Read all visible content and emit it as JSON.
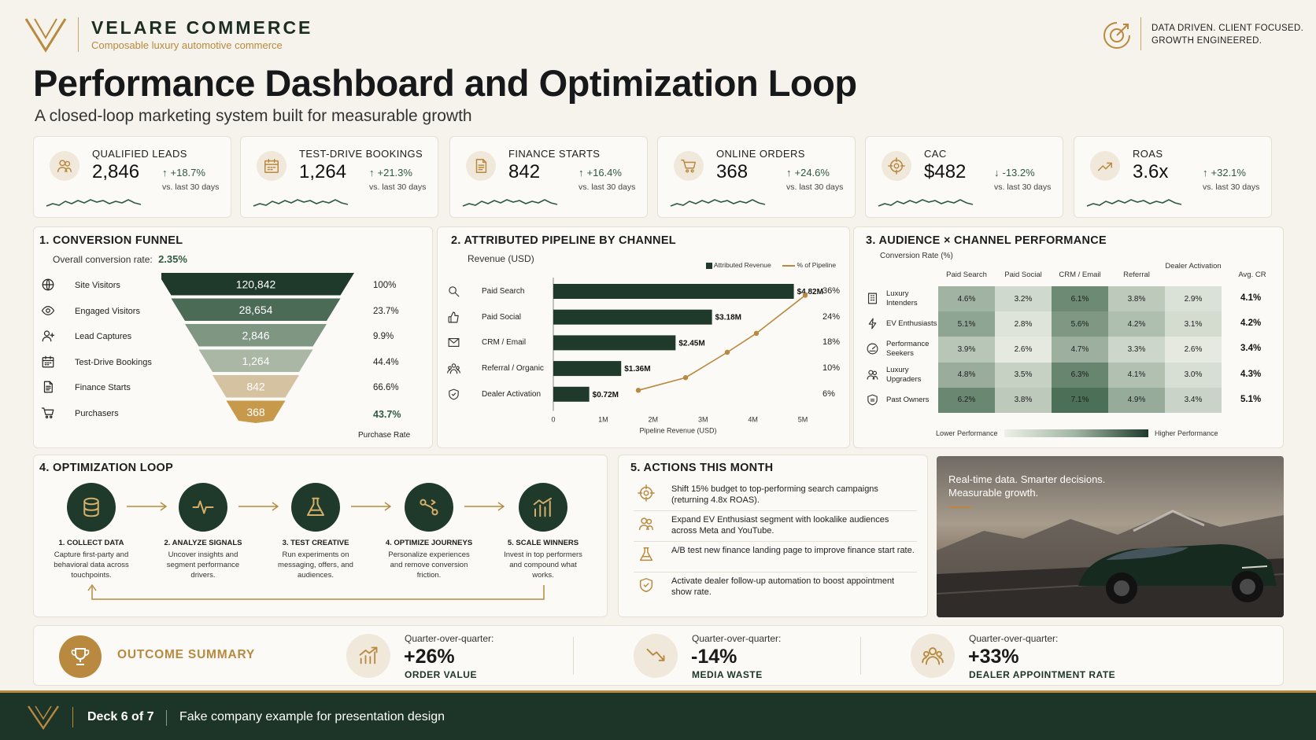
{
  "brand": {
    "name": "VELARE COMMERCE",
    "tagline": "Composable luxury automotive commerce",
    "motto_line1": "DATA DRIVEN. CLIENT FOCUSED.",
    "motto_line2": "GROWTH ENGINEERED."
  },
  "page": {
    "title": "Performance Dashboard and Optimization Loop",
    "subtitle": "A closed-loop marketing system built for measurable growth"
  },
  "kpis": [
    {
      "label": "QUALIFIED LEADS",
      "value": "2,846",
      "delta": "+18.7%",
      "direction": "up",
      "vs": "vs. last 30 days",
      "icon": "users-icon"
    },
    {
      "label": "TEST-DRIVE BOOKINGS",
      "value": "1,264",
      "delta": "+21.3%",
      "direction": "up",
      "vs": "vs. last 30 days",
      "icon": "calendar-icon"
    },
    {
      "label": "FINANCE STARTS",
      "value": "842",
      "delta": "+16.4%",
      "direction": "up",
      "vs": "vs. last 30 days",
      "icon": "document-icon"
    },
    {
      "label": "ONLINE ORDERS",
      "value": "368",
      "delta": "+24.6%",
      "direction": "up",
      "vs": "vs. last 30 days",
      "icon": "cart-icon"
    },
    {
      "label": "CAC",
      "value": "$482",
      "delta": "-13.2%",
      "direction": "down",
      "vs": "vs. last 30 days",
      "icon": "target-icon"
    },
    {
      "label": "ROAS",
      "value": "3.6x",
      "delta": "+32.1%",
      "direction": "up",
      "vs": "vs. last 30 days",
      "icon": "trend-icon"
    }
  ],
  "funnel": {
    "title": "1. CONVERSION FUNNEL",
    "overall_label": "Overall conversion rate:",
    "overall_value": "2.35%",
    "purchase_rate_label": "Purchase Rate",
    "stages": [
      {
        "label": "Site Visitors",
        "value": "120,842",
        "pct": "100%",
        "icon": "globe-icon"
      },
      {
        "label": "Engaged Visitors",
        "value": "28,654",
        "pct": "23.7%",
        "icon": "eye-icon"
      },
      {
        "label": "Lead Captures",
        "value": "2,846",
        "pct": "9.9%",
        "icon": "user-plus-icon"
      },
      {
        "label": "Test-Drive Bookings",
        "value": "1,264",
        "pct": "44.4%",
        "icon": "calendar-icon"
      },
      {
        "label": "Finance Starts",
        "value": "842",
        "pct": "66.6%",
        "icon": "document-icon"
      },
      {
        "label": "Purchasers",
        "value": "368",
        "pct": "43.7%",
        "icon": "cart-icon"
      }
    ]
  },
  "pipeline": {
    "title": "2. ATTRIBUTED PIPELINE BY CHANNEL",
    "subtitle": "Revenue (USD)",
    "legend_bar": "Attributed Revenue",
    "legend_line": "% of Pipeline",
    "xlabel": "Pipeline Revenue (USD)",
    "xticks": [
      "0",
      "1M",
      "2M",
      "3M",
      "4M",
      "5M"
    ],
    "channels": [
      {
        "label": "Paid Search",
        "value_label": "$4.82M",
        "pct_label": "36%",
        "icon": "search-icon"
      },
      {
        "label": "Paid Social",
        "value_label": "$3.18M",
        "pct_label": "24%",
        "icon": "thumbs-up-icon"
      },
      {
        "label": "CRM / Email",
        "value_label": "$2.45M",
        "pct_label": "18%",
        "icon": "mail-icon"
      },
      {
        "label": "Referral / Organic",
        "value_label": "$1.36M",
        "pct_label": "10%",
        "icon": "group-icon"
      },
      {
        "label": "Dealer Activation",
        "value_label": "$0.72M",
        "pct_label": "6%",
        "icon": "shield-icon"
      }
    ]
  },
  "chart_data": {
    "type": "bar",
    "title": "2. ATTRIBUTED PIPELINE BY CHANNEL",
    "categories": [
      "Paid Search",
      "Paid Social",
      "CRM / Email",
      "Referral / Organic",
      "Dealer Activation"
    ],
    "series": [
      {
        "name": "Attributed Revenue",
        "values": [
          4.82,
          3.18,
          2.45,
          1.36,
          0.72
        ]
      },
      {
        "name": "% of Pipeline",
        "values": [
          36,
          24,
          18,
          10,
          6
        ]
      }
    ],
    "xlabel": "Pipeline Revenue (USD)",
    "ylabel": "",
    "xlim": [
      0,
      5
    ],
    "colors": {
      "bar": "#1f3a2b",
      "line": "#b8893f"
    }
  },
  "heatmap": {
    "title": "3. AUDIENCE × CHANNEL PERFORMANCE",
    "subtitle": "Conversion Rate (%)",
    "columns": [
      "Paid Search",
      "Paid Social",
      "CRM / Email",
      "Referral",
      "Dealer Activation",
      "Avg. CR"
    ],
    "rows": [
      {
        "label": "Luxury Intenders",
        "values": [
          4.6,
          3.2,
          6.1,
          3.8,
          2.9
        ],
        "avg": "4.1%",
        "icon": "building-icon"
      },
      {
        "label": "EV Enthusiasts",
        "values": [
          5.1,
          2.8,
          5.6,
          4.2,
          3.1
        ],
        "avg": "4.2%",
        "icon": "plug-icon"
      },
      {
        "label": "Performance Seekers",
        "values": [
          3.9,
          2.6,
          4.7,
          3.3,
          2.6
        ],
        "avg": "3.4%",
        "icon": "gauge-icon"
      },
      {
        "label": "Luxury Upgraders",
        "values": [
          4.8,
          3.5,
          6.3,
          4.1,
          3.0
        ],
        "avg": "4.3%",
        "icon": "users-icon"
      },
      {
        "label": "Past Owners",
        "values": [
          6.2,
          3.8,
          7.1,
          4.9,
          3.4
        ],
        "avg": "5.1%",
        "icon": "badge-icon"
      }
    ],
    "legend_low": "Lower Performance",
    "legend_high": "Higher Performance"
  },
  "loop": {
    "title": "4. OPTIMIZATION LOOP",
    "steps": [
      {
        "title": "1. COLLECT DATA",
        "desc": "Capture first-party and behavioral data across touchpoints.",
        "icon": "database-icon"
      },
      {
        "title": "2. ANALYZE SIGNALS",
        "desc": "Uncover insights and segment performance drivers.",
        "icon": "pulse-icon"
      },
      {
        "title": "3. TEST CREATIVE",
        "desc": "Run experiments on messaging, offers, and audiences.",
        "icon": "flask-icon"
      },
      {
        "title": "4. OPTIMIZE JOURNEYS",
        "desc": "Personalize experiences and remove conversion friction.",
        "icon": "journey-icon"
      },
      {
        "title": "5. SCALE WINNERS",
        "desc": "Invest in top performers and compound what works.",
        "icon": "bar-chart-icon"
      }
    ]
  },
  "actions": {
    "title": "5. ACTIONS THIS MONTH",
    "items": [
      {
        "text": "Shift 15% budget to top-performing search campaigns (returning 4.8x ROAS).",
        "icon": "target-icon"
      },
      {
        "text": "Expand EV Enthusiast segment with lookalike audiences across Meta and YouTube.",
        "icon": "users-icon"
      },
      {
        "text": "A/B test new finance landing page to improve finance start rate.",
        "icon": "flask-icon"
      },
      {
        "text": "Activate dealer follow-up automation to boost appointment show rate.",
        "icon": "shield-icon"
      }
    ]
  },
  "promo": {
    "line1": "Real-time data. Smarter decisions.",
    "line2": "Measurable growth."
  },
  "outcome": {
    "title": "OUTCOME SUMMARY",
    "items": [
      {
        "small": "Quarter-over-quarter:",
        "big": "+26%",
        "label": "ORDER VALUE",
        "icon": "growth-chart-icon"
      },
      {
        "small": "Quarter-over-quarter:",
        "big": "-14%",
        "label": "MEDIA WASTE",
        "icon": "decline-chart-icon"
      },
      {
        "small": "Quarter-over-quarter:",
        "big": "+33%",
        "label": "DEALER APPOINTMENT RATE",
        "icon": "people-icon"
      }
    ]
  },
  "footer": {
    "deck": "Deck 6 of 7",
    "note": "Fake company example for presentation design"
  },
  "colors": {
    "primary": "#1d3428",
    "gold": "#b8893f",
    "background": "#f6f3ec"
  }
}
